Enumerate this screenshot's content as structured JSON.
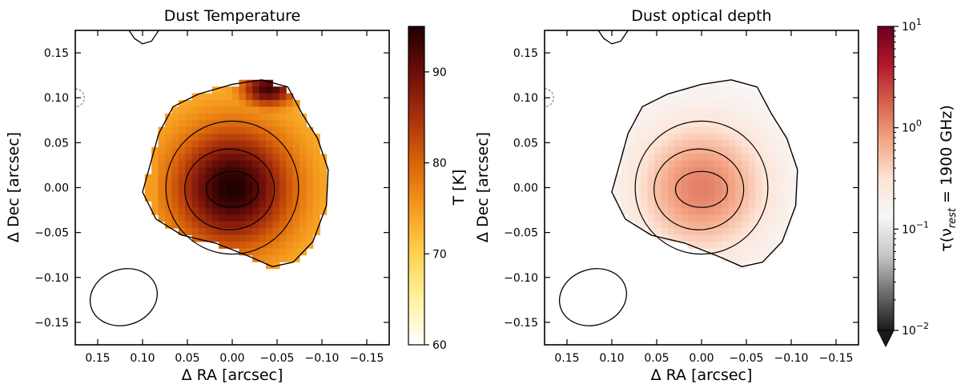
{
  "chart_data": [
    {
      "type": "heatmap",
      "title": "Dust Temperature",
      "xlabel": "Δ RA [arcsec]",
      "ylabel": "Δ Dec [arcsec]",
      "xlim": [
        0.175,
        -0.175
      ],
      "ylim": [
        -0.175,
        0.175
      ],
      "xticks": [
        0.15,
        0.1,
        0.05,
        0.0,
        -0.05,
        -0.1,
        -0.15
      ],
      "xtick_labels": [
        "0.15",
        "0.10",
        "0.05",
        "0.00",
        "−0.05",
        "−0.10",
        "−0.15"
      ],
      "yticks": [
        0.15,
        0.1,
        0.05,
        0.0,
        -0.05,
        -0.1,
        -0.15
      ],
      "ytick_labels": [
        "0.15",
        "0.10",
        "0.05",
        "0.00",
        "−0.05",
        "−0.10",
        "−0.15"
      ],
      "colorbar": {
        "label": "T [K]",
        "scale": "linear",
        "range": [
          60,
          95
        ],
        "ticks": [
          60,
          70,
          80,
          90
        ],
        "tick_labels": [
          "60",
          "70",
          "80",
          "90"
        ],
        "colormap": [
          "#ffffff",
          "#fff2a0",
          "#ffd250",
          "#f59a1e",
          "#d9640a",
          "#a8300c",
          "#6b0e0a",
          "#1e0000"
        ]
      },
      "peak_value": 95,
      "hot_spot_value": 93,
      "edge_value": 72,
      "peak_position": [
        0.0,
        0.0
      ],
      "hot_spot_position": [
        -0.04,
        0.11
      ]
    },
    {
      "type": "heatmap",
      "title": "Dust optical depth",
      "xlabel": "Δ RA [arcsec]",
      "ylabel": "Δ Dec [arcsec]",
      "xlim": [
        0.175,
        -0.175
      ],
      "ylim": [
        -0.175,
        0.175
      ],
      "xticks": [
        0.15,
        0.1,
        0.05,
        0.0,
        -0.05,
        -0.1,
        -0.15
      ],
      "xtick_labels": [
        "0.15",
        "0.10",
        "0.05",
        "0.00",
        "−0.05",
        "−0.10",
        "−0.15"
      ],
      "yticks": [
        0.15,
        0.1,
        0.05,
        0.0,
        -0.05,
        -0.1,
        -0.15
      ],
      "ytick_labels": [
        "0.15",
        "0.10",
        "0.05",
        "0.00",
        "−0.05",
        "−0.10",
        "−0.15"
      ],
      "colorbar": {
        "label_main": "τ(ν",
        "label_sub": "rest",
        "label_rest": " = 1900 GHz)",
        "scale": "log",
        "range": [
          0.01,
          10
        ],
        "ticks": [
          0.01,
          0.1,
          1,
          10
        ],
        "tick_base": "10",
        "tick_exponents": [
          "−2",
          "−1",
          "0",
          "1"
        ],
        "extend": "min",
        "colormap": [
          "#1a1a1a",
          "#6e6e6e",
          "#c8c8c8",
          "#f7f7f7",
          "#fde3d5",
          "#f4a585",
          "#d6604d",
          "#b2182b",
          "#67001f"
        ]
      },
      "peak_value": 1.2,
      "edge_value": 0.12,
      "peak_position": [
        0.0,
        0.0
      ]
    }
  ],
  "contours": {
    "levels": [
      {
        "center": [
          0.0,
          -0.002
        ],
        "rx": 0.029,
        "ry": 0.02
      },
      {
        "center": [
          0.003,
          -0.002
        ],
        "rx": 0.05,
        "ry": 0.045
      },
      {
        "center": [
          0.0,
          0.0
        ],
        "rx": 0.074,
        "ry": 0.074
      },
      {
        "center": [
          0.0,
          0.01
        ],
        "rx": 0.092,
        "ry": 0.096
      }
    ],
    "outer_boundary": [
      [
        0.093,
        0.02
      ],
      [
        0.082,
        0.06
      ],
      [
        0.066,
        0.09
      ],
      [
        0.038,
        0.104
      ],
      [
        0.0,
        0.115
      ],
      [
        -0.033,
        0.12
      ],
      [
        -0.062,
        0.112
      ],
      [
        -0.078,
        0.082
      ],
      [
        -0.095,
        0.055
      ],
      [
        -0.107,
        0.02
      ],
      [
        -0.105,
        -0.02
      ],
      [
        -0.09,
        -0.06
      ],
      [
        -0.068,
        -0.083
      ],
      [
        -0.045,
        -0.088
      ],
      [
        -0.02,
        -0.077
      ],
      [
        0.018,
        -0.062
      ],
      [
        0.056,
        -0.053
      ],
      [
        0.085,
        -0.035
      ],
      [
        0.1,
        -0.005
      ]
    ],
    "small_contour": [
      [
        0.115,
        0.175
      ],
      [
        0.109,
        0.166
      ],
      [
        0.1,
        0.16
      ],
      [
        0.09,
        0.163
      ],
      [
        0.082,
        0.175
      ]
    ],
    "beam": {
      "center": [
        0.121,
        -0.122
      ],
      "rx": 0.038,
      "ry": 0.031,
      "angle_deg": -18
    }
  }
}
